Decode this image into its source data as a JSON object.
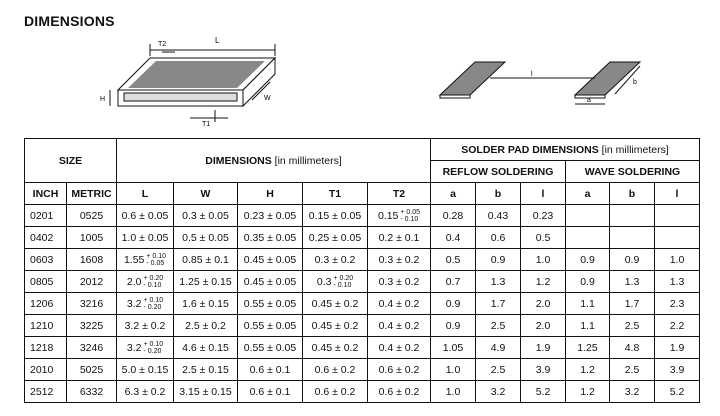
{
  "title": "DIMENSIONS",
  "diagram_labels": {
    "L": "L",
    "W": "W",
    "H": "H",
    "T1": "T1",
    "T2": "T2",
    "a": "a",
    "b": "b",
    "l": "l"
  },
  "headers": {
    "size": "SIZE",
    "dimensions": "DIMENSIONS",
    "dimensions_unit": "[in millimeters]",
    "solder_pad": "SOLDER PAD DIMENSIONS",
    "solder_pad_unit": "[in millimeters]",
    "reflow": "REFLOW SOLDERING",
    "wave": "WAVE SOLDERING",
    "columns": [
      "INCH",
      "METRIC",
      "L",
      "W",
      "H",
      "T1",
      "T2",
      "a",
      "b",
      "l",
      "a",
      "b",
      "l"
    ]
  },
  "rows": [
    {
      "inch": "0201",
      "metric": "0525",
      "L": {
        "v": "0.6 ± 0.05"
      },
      "W": {
        "v": "0.3 ± 0.05"
      },
      "H": {
        "v": "0.23 ± 0.05"
      },
      "T1": {
        "v": "0.15 ± 0.05"
      },
      "T2": {
        "v": "0.15",
        "p": "+ 0.05",
        "m": "- 0.10"
      },
      "ra": "0.28",
      "rb": "0.43",
      "rl": "0.23",
      "wa": "",
      "wb": "",
      "wl": ""
    },
    {
      "inch": "0402",
      "metric": "1005",
      "L": {
        "v": "1.0 ± 0.05"
      },
      "W": {
        "v": "0.5 ± 0.05"
      },
      "H": {
        "v": "0.35 ± 0.05"
      },
      "T1": {
        "v": "0.25 ± 0.05"
      },
      "T2": {
        "v": "0.2 ± 0.1"
      },
      "ra": "0.4",
      "rb": "0.6",
      "rl": "0.5",
      "wa": "",
      "wb": "",
      "wl": ""
    },
    {
      "inch": "0603",
      "metric": "1608",
      "L": {
        "v": "1.55",
        "p": "+ 0.10",
        "m": "- 0.05"
      },
      "W": {
        "v": "0.85 ± 0.1"
      },
      "H": {
        "v": "0.45 ± 0.05"
      },
      "T1": {
        "v": "0.3 ± 0.2"
      },
      "T2": {
        "v": "0.3 ± 0.2"
      },
      "ra": "0.5",
      "rb": "0.9",
      "rl": "1.0",
      "wa": "0.9",
      "wb": "0.9",
      "wl": "1.0"
    },
    {
      "inch": "0805",
      "metric": "2012",
      "L": {
        "v": "2.0",
        "p": "+ 0.20",
        "m": "- 0.10"
      },
      "W": {
        "v": "1.25 ± 0.15"
      },
      "H": {
        "v": "0.45 ± 0.05"
      },
      "T1": {
        "v": "0.3",
        "p": "+ 0.20",
        "m": "- 0.10"
      },
      "T2": {
        "v": "0.3 ± 0.2"
      },
      "ra": "0.7",
      "rb": "1.3",
      "rl": "1.2",
      "wa": "0.9",
      "wb": "1.3",
      "wl": "1.3"
    },
    {
      "inch": "1206",
      "metric": "3216",
      "L": {
        "v": "3.2",
        "p": "+ 0.10",
        "m": "- 0.20"
      },
      "W": {
        "v": "1.6 ± 0.15"
      },
      "H": {
        "v": "0.55 ± 0.05"
      },
      "T1": {
        "v": "0.45 ± 0.2"
      },
      "T2": {
        "v": "0.4 ± 0.2"
      },
      "ra": "0.9",
      "rb": "1.7",
      "rl": "2.0",
      "wa": "1.1",
      "wb": "1.7",
      "wl": "2.3"
    },
    {
      "inch": "1210",
      "metric": "3225",
      "L": {
        "v": "3.2 ± 0.2"
      },
      "W": {
        "v": "2.5 ± 0.2"
      },
      "H": {
        "v": "0.55 ± 0.05"
      },
      "T1": {
        "v": "0.45 ± 0.2"
      },
      "T2": {
        "v": "0.4 ± 0.2"
      },
      "ra": "0.9",
      "rb": "2.5",
      "rl": "2.0",
      "wa": "1.1",
      "wb": "2.5",
      "wl": "2.2"
    },
    {
      "inch": "1218",
      "metric": "3246",
      "L": {
        "v": "3.2",
        "p": "+ 0.10",
        "m": "- 0.20"
      },
      "W": {
        "v": "4.6 ± 0.15"
      },
      "H": {
        "v": "0.55 ± 0.05"
      },
      "T1": {
        "v": "0.45 ± 0.2"
      },
      "T2": {
        "v": "0.4 ± 0.2"
      },
      "ra": "1.05",
      "rb": "4.9",
      "rl": "1.9",
      "wa": "1.25",
      "wb": "4.8",
      "wl": "1.9"
    },
    {
      "inch": "2010",
      "metric": "5025",
      "L": {
        "v": "5.0 ± 0.15"
      },
      "W": {
        "v": "2.5 ± 0.15"
      },
      "H": {
        "v": "0.6 ± 0.1"
      },
      "T1": {
        "v": "0.6 ± 0.2"
      },
      "T2": {
        "v": "0.6 ± 0.2"
      },
      "ra": "1.0",
      "rb": "2.5",
      "rl": "3.9",
      "wa": "1.2",
      "wb": "2.5",
      "wl": "3.9"
    },
    {
      "inch": "2512",
      "metric": "6332",
      "L": {
        "v": "6.3 ± 0.2"
      },
      "W": {
        "v": "3.15 ± 0.15"
      },
      "H": {
        "v": "0.6 ± 0.1"
      },
      "T1": {
        "v": "0.6 ± 0.2"
      },
      "T2": {
        "v": "0.6 ± 0.2"
      },
      "ra": "1.0",
      "rb": "3.2",
      "rl": "5.2",
      "wa": "1.2",
      "wb": "3.2",
      "wl": "5.2"
    }
  ]
}
